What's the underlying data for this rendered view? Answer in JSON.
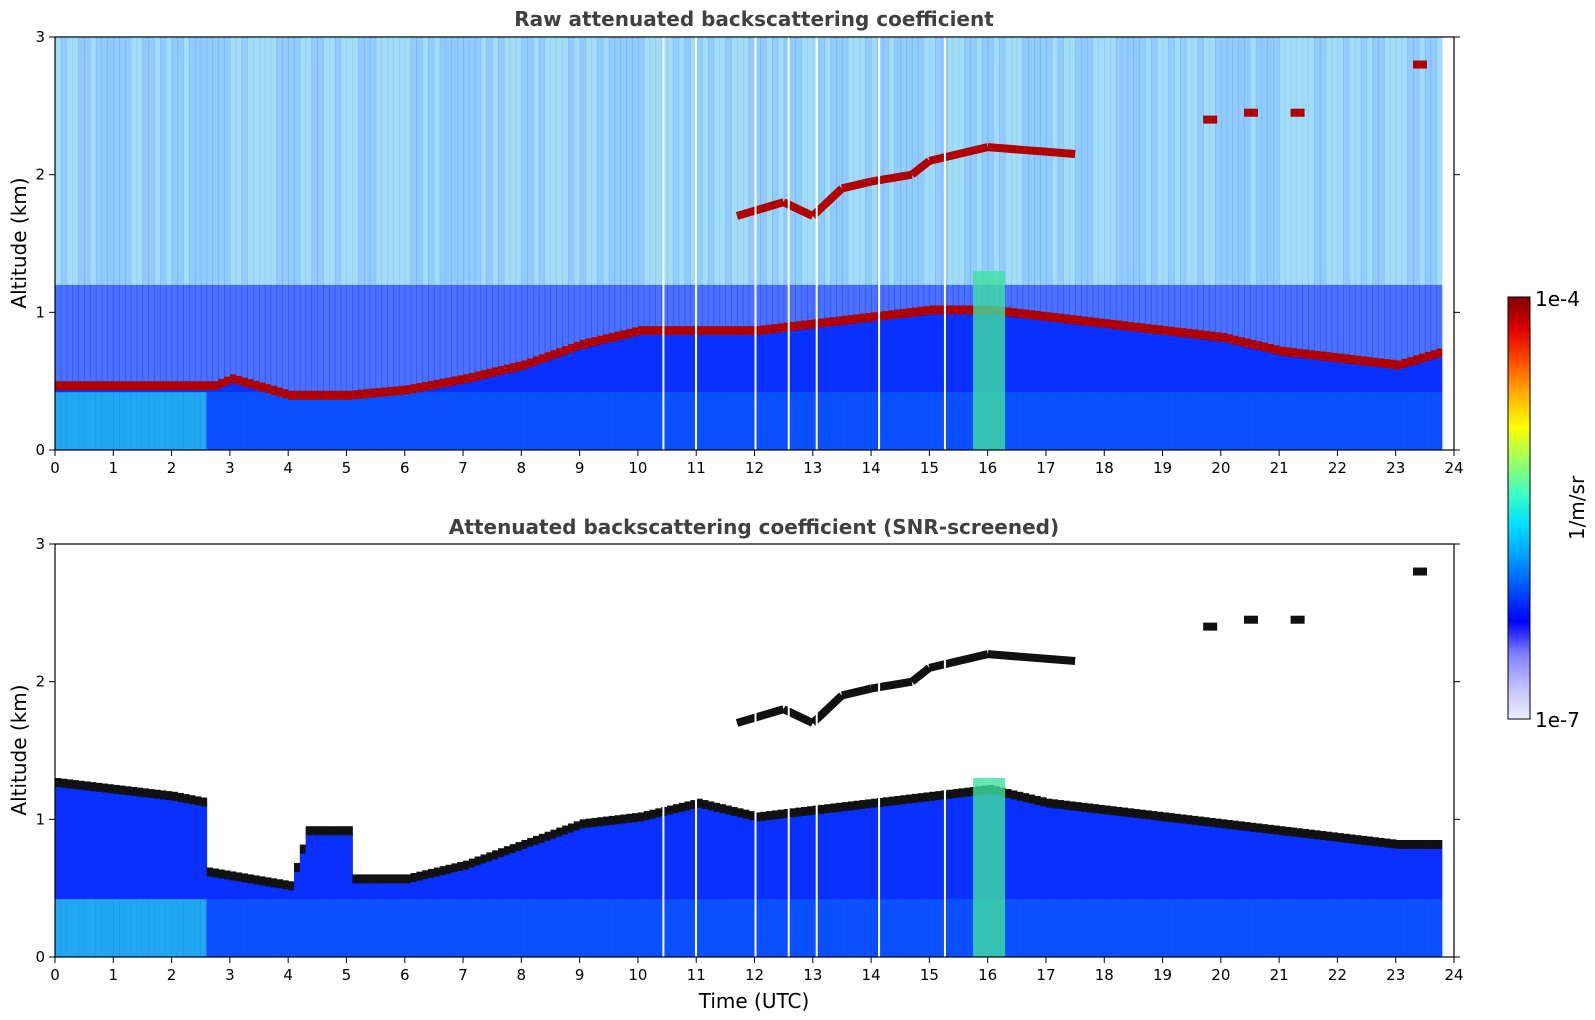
{
  "chart_data": [
    {
      "type": "heatmap",
      "title": "Raw attenuated backscattering coefficient",
      "xlabel": "",
      "ylabel": "Altitude (km)",
      "xlim": [
        0,
        24
      ],
      "ylim": [
        0,
        3
      ],
      "xticks": [
        "0",
        "1",
        "2",
        "3",
        "4",
        "5",
        "6",
        "7",
        "8",
        "9",
        "10",
        "11",
        "12",
        "13",
        "14",
        "15",
        "16",
        "17",
        "18",
        "19",
        "20",
        "21",
        "22",
        "23",
        "24"
      ],
      "yticks": [
        "0",
        "1",
        "2",
        "3"
      ],
      "grid": false,
      "layers": {
        "surface_layer_top_km": 0.4,
        "pbl_top_km": [
          [
            0,
            0.45
          ],
          [
            2,
            0.45
          ],
          [
            2.7,
            0.45
          ],
          [
            3,
            0.5
          ],
          [
            4,
            0.38
          ],
          [
            5,
            0.38
          ],
          [
            6,
            0.42
          ],
          [
            7,
            0.5
          ],
          [
            8,
            0.6
          ],
          [
            9,
            0.75
          ],
          [
            10,
            0.85
          ],
          [
            11,
            0.85
          ],
          [
            12,
            0.85
          ],
          [
            13,
            0.9
          ],
          [
            14,
            0.95
          ],
          [
            15,
            1.0
          ],
          [
            16,
            1.0
          ],
          [
            17,
            0.95
          ],
          [
            18,
            0.9
          ],
          [
            19,
            0.85
          ],
          [
            20,
            0.8
          ],
          [
            21,
            0.7
          ],
          [
            22,
            0.65
          ],
          [
            23,
            0.6
          ],
          [
            23.8,
            0.7
          ]
        ],
        "elevated_layer_km": [
          [
            11.7,
            1.7
          ],
          [
            12.5,
            1.8
          ],
          [
            13.0,
            1.7
          ],
          [
            13.5,
            1.9
          ],
          [
            14.0,
            1.95
          ],
          [
            14.7,
            2.0
          ],
          [
            15.0,
            2.1
          ],
          [
            16.0,
            2.2
          ],
          [
            17.5,
            2.15
          ]
        ],
        "high_cloud_patches_km": [
          [
            19.8,
            2.4
          ],
          [
            20.5,
            2.45
          ],
          [
            21.3,
            2.45
          ],
          [
            23.4,
            2.8
          ]
        ],
        "data_gaps_h": [
          10.42,
          10.98,
          12.0,
          12.57,
          13.05,
          14.12,
          15.25
        ]
      }
    },
    {
      "type": "heatmap",
      "title": "Attenuated backscattering coefficient (SNR-screened)",
      "xlabel": "Time (UTC)",
      "ylabel": "Altitude (km)",
      "xlim": [
        0,
        24
      ],
      "ylim": [
        0,
        3
      ],
      "xticks": [
        "0",
        "1",
        "2",
        "3",
        "4",
        "5",
        "6",
        "7",
        "8",
        "9",
        "10",
        "11",
        "12",
        "13",
        "14",
        "15",
        "16",
        "17",
        "18",
        "19",
        "20",
        "21",
        "22",
        "23",
        "24"
      ],
      "yticks": [
        "0",
        "1",
        "2",
        "3"
      ],
      "grid": false,
      "screened_top_km": [
        [
          0,
          1.25
        ],
        [
          2,
          1.15
        ],
        [
          2.6,
          1.1
        ],
        [
          2.6,
          0.6
        ],
        [
          4.0,
          0.5
        ],
        [
          4.3,
          0.9
        ],
        [
          5.0,
          0.9
        ],
        [
          5.1,
          0.55
        ],
        [
          6,
          0.55
        ],
        [
          7,
          0.65
        ],
        [
          8,
          0.8
        ],
        [
          9,
          0.95
        ],
        [
          10,
          1.0
        ],
        [
          11,
          1.1
        ],
        [
          12,
          1.0
        ],
        [
          13,
          1.05
        ],
        [
          14,
          1.1
        ],
        [
          15,
          1.15
        ],
        [
          16,
          1.2
        ],
        [
          17,
          1.1
        ],
        [
          18,
          1.05
        ],
        [
          19,
          1.0
        ],
        [
          20,
          0.95
        ],
        [
          21,
          0.9
        ],
        [
          22,
          0.85
        ],
        [
          23,
          0.8
        ],
        [
          23.8,
          0.8
        ]
      ]
    }
  ],
  "colorbar": {
    "max_label": "1e-4",
    "min_label": "1e-7",
    "units": "1/m/sr",
    "colormap": [
      "#eeeeff",
      "#c0c0ff",
      "#8080ff",
      "#0000ff",
      "#0050ff",
      "#00a0ff",
      "#00e0ff",
      "#40ffc0",
      "#a0ff60",
      "#ffff00",
      "#ffb000",
      "#ff5000",
      "#e00000",
      "#800000"
    ]
  }
}
